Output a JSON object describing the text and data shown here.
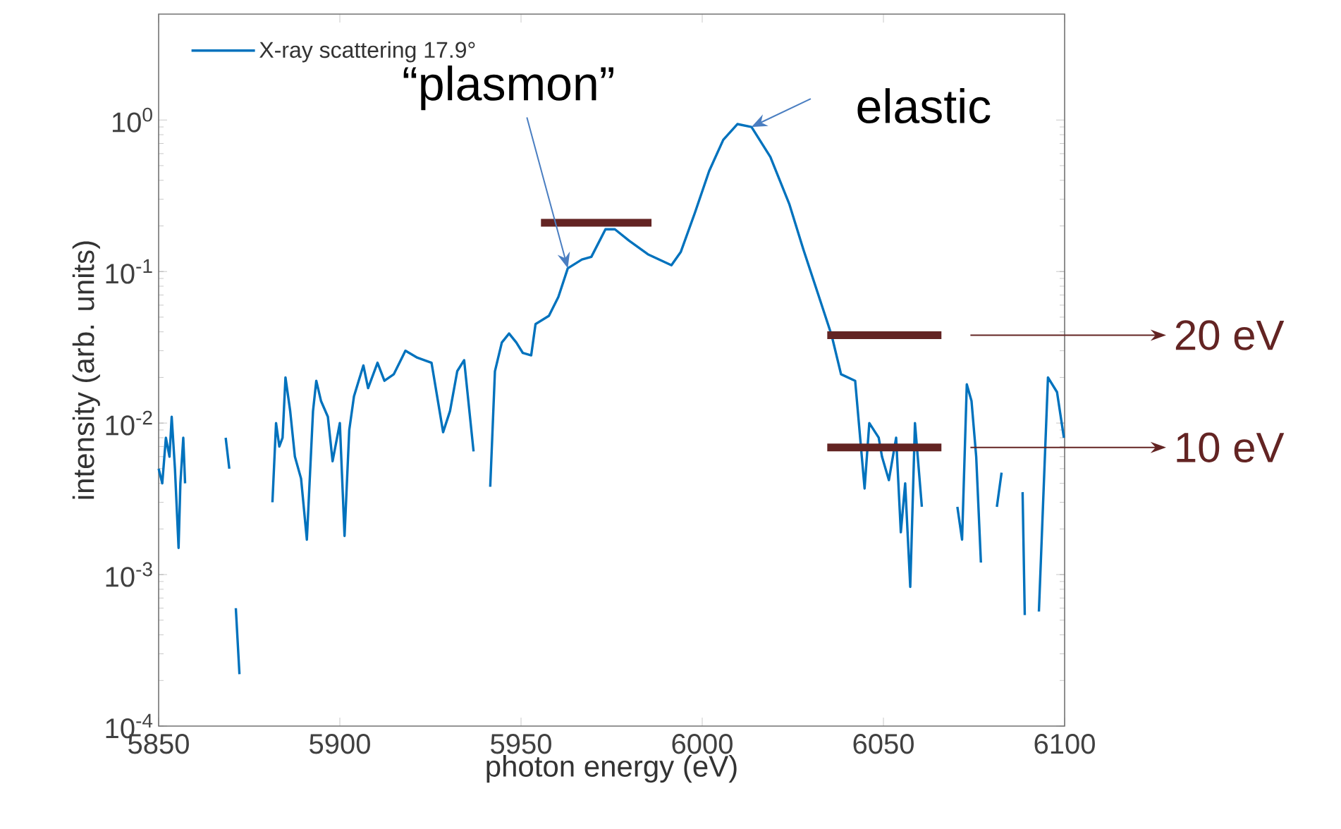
{
  "chart_data": {
    "type": "line",
    "xlabel": "photon energy (eV)",
    "ylabel": "intensity (arb. units)",
    "xlim": [
      5850,
      6100
    ],
    "ylim": [
      0.0001,
      5
    ],
    "log": "y",
    "grid": false,
    "legend": "top left",
    "marker": "none",
    "line_style": "solid",
    "xticks": [
      5850,
      5900,
      5950,
      6000,
      6050,
      6100
    ],
    "yticks": [
      {
        "value": 0.0001,
        "label": "10$^{-4}$"
      },
      {
        "value": 0.001,
        "label": "10$^{-3}$"
      },
      {
        "value": 0.01,
        "label": "10$^{-2}$"
      },
      {
        "value": 0.1,
        "label": "10$^{-1}$"
      },
      {
        "value": 1,
        "label": "10$^{0}$"
      }
    ],
    "series": [
      {
        "name": "X-ray scattering 17.9°",
        "color": "#0072bd",
        "x": [
          5850,
          5851,
          5852,
          5853,
          5853.6,
          5854.5,
          5855.5,
          5856,
          5856.8,
          5857.3,
          5863,
          5868.5,
          5869.5,
          5870.5,
          5871.3,
          5872.3,
          5877,
          5881.4,
          5882.4,
          5883.3,
          5884.2,
          5885,
          5886.3,
          5887.6,
          5889.3,
          5890.9,
          5892.6,
          5893.5,
          5894.8,
          5896.7,
          5898,
          5900,
          5901.3,
          5902.6,
          5903.9,
          5906.5,
          5907.8,
          5910.4,
          5912.3,
          5914.9,
          5918.1,
          5921.4,
          5925.3,
          5928.5,
          5930.4,
          5932.4,
          5934.3,
          5936.9,
          5939,
          5941.5,
          5942.8,
          5944.7,
          5946.7,
          5948.7,
          5950.5,
          5952.8,
          5954,
          5957.7,
          5960.3,
          5962.9,
          5966.8,
          5969.4,
          5973.3,
          5975.9,
          5979.8,
          5985,
          5991.5,
          5994.1,
          5998,
          6001.9,
          6005.8,
          6009.7,
          6013.6,
          6018.8,
          6024,
          6027.9,
          6031.8,
          6035.7,
          6038.3,
          6042.2,
          6044.8,
          6046.1,
          6048.7,
          6049.6,
          6051.5,
          6053.5,
          6054.8,
          6056,
          6057.4,
          6058.7,
          6060.6,
          6065,
          6070.4,
          6071.7,
          6073,
          6074.3,
          6075.6,
          6076.9,
          6079,
          6081.3,
          6082.6,
          6085,
          6088.4,
          6089,
          6091,
          6092.9,
          6095.4,
          6097.9,
          6099.8
        ],
        "values": [
          0.005,
          0.004,
          0.008,
          0.006,
          0.011,
          0.005,
          0.0015,
          0.004,
          0.008,
          0.004,
          null,
          0.008,
          0.005,
          null,
          0.0006,
          0.00022,
          null,
          0.003,
          0.01,
          0.007,
          0.008,
          0.02,
          0.012,
          0.006,
          0.0043,
          0.0017,
          0.012,
          0.019,
          0.014,
          0.011,
          0.0056,
          0.01,
          0.0018,
          0.009,
          0.015,
          0.024,
          0.017,
          0.025,
          0.019,
          0.021,
          0.03,
          0.027,
          0.025,
          0.0087,
          0.012,
          0.022,
          0.026,
          0.0065,
          null,
          0.0038,
          0.022,
          0.034,
          0.039,
          0.034,
          0.029,
          0.028,
          0.045,
          0.051,
          0.068,
          0.105,
          0.12,
          0.125,
          0.19,
          0.19,
          0.16,
          0.13,
          0.11,
          0.135,
          0.245,
          0.46,
          0.74,
          0.94,
          0.9,
          0.57,
          0.28,
          0.14,
          0.073,
          0.038,
          0.021,
          0.019,
          0.0037,
          0.01,
          0.008,
          0.006,
          0.0042,
          0.008,
          0.0019,
          0.004,
          0.00083,
          0.01,
          0.0028,
          null,
          0.0028,
          0.0017,
          0.018,
          0.014,
          0.006,
          0.0012,
          null,
          0.0028,
          0.0047,
          null,
          0.0035,
          0.00054,
          null,
          0.00057,
          0.02,
          0.016,
          0.008
        ]
      },
      {
        "color": "#632423",
        "x": [
          5955.5,
          5986
        ],
        "values": [
          0.21,
          0.21
        ]
      },
      {
        "color": "#632423",
        "x": [
          6034.5,
          6066
        ],
        "values": [
          0.038,
          0.038
        ]
      },
      {
        "color": "#632423",
        "x": [
          6034.5,
          6066
        ],
        "values": [
          0.0069,
          0.0069
        ]
      }
    ],
    "annotations": [
      {
        "text": "“plasmon”",
        "x": 5962.9,
        "y": 0.105
      },
      {
        "text": "elastic",
        "x": 6013.6,
        "y": 0.9
      },
      "20 eV",
      "10 eV"
    ]
  }
}
